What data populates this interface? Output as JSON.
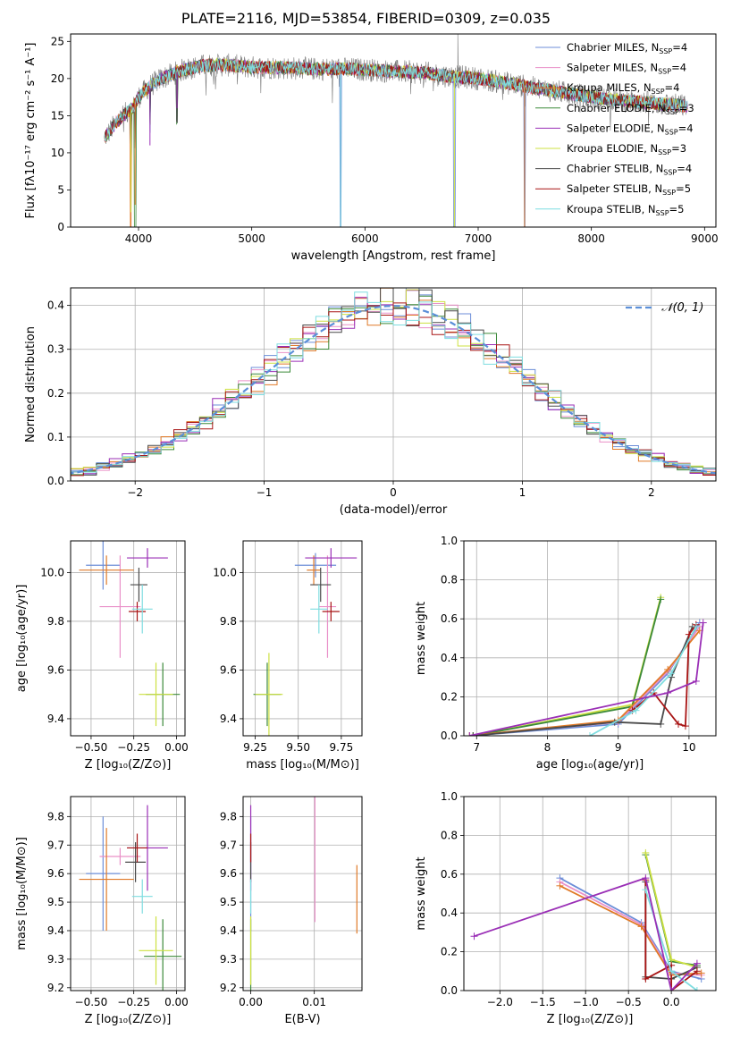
{
  "figure": {
    "title": "PLATE=2116, MJD=53854, FIBERID=0309, z=0.035"
  },
  "colors": {
    "Chabrier MILES": "#6c8ed8",
    "Salpeter MILES": "#e990c8",
    "Kroupa MILES": "#e07a28",
    "Chabrier ELODIE": "#3c8a3a",
    "Salpeter ELODIE": "#9a2fb6",
    "Kroupa ELODIE": "#cde040",
    "Chabrier STELIB": "#4a4a4a",
    "Salpeter STELIB": "#a81414",
    "Kroupa STELIB": "#7fdde0",
    "data": "#7a7a7a",
    "gauss": "#5b8fd8"
  },
  "chart_data": [
    {
      "id": "spectrum",
      "type": "line",
      "title": "PLATE=2116, MJD=53854, FIBERID=0309, z=0.035",
      "xlabel": "wavelength [Angstrom, rest frame]",
      "ylabel": "Flux [fλ10⁻¹⁷ erg cm⁻² s⁻¹ A⁻¹]",
      "xlim": [
        3400,
        9100
      ],
      "ylim": [
        0,
        26
      ],
      "xticks": [
        4000,
        5000,
        6000,
        7000,
        8000,
        9000
      ],
      "yticks": [
        0,
        5,
        10,
        15,
        20,
        25
      ],
      "legend": "top-right",
      "continuum": {
        "x": [
          3700,
          3800,
          3900,
          3950,
          4000,
          4100,
          4200,
          4400,
          4600,
          4800,
          5000,
          5200,
          5500,
          5800,
          6000,
          6200,
          6500,
          6700,
          7000,
          7300,
          7500,
          7800,
          8000,
          8300,
          8600,
          8850
        ],
        "y": [
          12,
          14,
          15.5,
          16,
          17.5,
          19,
          20,
          21.2,
          21.8,
          21.8,
          21.5,
          21.5,
          21.3,
          21.3,
          21.2,
          21,
          20.8,
          20.4,
          20,
          19.3,
          18.7,
          18,
          17.5,
          17,
          16.6,
          16.3
        ]
      },
      "dips": [
        {
          "x": 3933,
          "model": 2
        },
        {
          "x": 3970,
          "model": 3
        },
        {
          "x": 4101,
          "model": 12
        },
        {
          "x": 4340,
          "model": 16
        },
        {
          "x": 5785,
          "model": 0
        },
        {
          "x": 6790,
          "model": 0
        },
        {
          "x": 7410,
          "model": 0
        }
      ],
      "data_spike": {
        "x": 6820,
        "y": 26
      },
      "series": [
        {
          "name": "Chabrier MILES, N",
          "sub": "SSP",
          "tail": "=4"
        },
        {
          "name": "Salpeter MILES, N",
          "sub": "SSP",
          "tail": "=4"
        },
        {
          "name": "Kroupa MILES, N",
          "sub": "SSP",
          "tail": "=4"
        },
        {
          "name": "Chabrier ELODIE, N",
          "sub": "SSP",
          "tail": "=3"
        },
        {
          "name": "Salpeter ELODIE, N",
          "sub": "SSP",
          "tail": "=4"
        },
        {
          "name": "Kroupa ELODIE, N",
          "sub": "SSP",
          "tail": "=3"
        },
        {
          "name": "Chabrier STELIB, N",
          "sub": "SSP",
          "tail": "=4"
        },
        {
          "name": "Salpeter STELIB, N",
          "sub": "SSP",
          "tail": "=5"
        },
        {
          "name": "Kroupa STELIB, N",
          "sub": "SSP",
          "tail": "=5"
        }
      ]
    },
    {
      "id": "residuals",
      "type": "histogram",
      "xlabel": "(data-model)/error",
      "ylabel": "Normed distribution",
      "xlim": [
        -2.5,
        2.5
      ],
      "ylim": [
        0,
        0.44
      ],
      "xticks": [
        -2,
        -1,
        0,
        1,
        2
      ],
      "yticks": [
        0.0,
        0.1,
        0.2,
        0.3,
        0.4
      ],
      "legend": "top-right",
      "gauss_label": "𝒩(0, 1)",
      "bin_width": 0.1,
      "series": [
        "Chabrier MILES",
        "Salpeter MILES",
        "Kroupa MILES",
        "Chabrier ELODIE",
        "Salpeter ELODIE",
        "Kroupa ELODIE",
        "Chabrier STELIB",
        "Salpeter STELIB",
        "Kroupa STELIB"
      ]
    },
    {
      "id": "age_vs_Z",
      "type": "errorbar",
      "xlabel": "Z [log₁₀(Z/Z⊙)]",
      "ylabel": "age  [log₁₀(age/yr)]",
      "xlim": [
        -0.62,
        0.05
      ],
      "ylim": [
        9.33,
        10.13
      ],
      "xticks": [
        -0.5,
        -0.25,
        0.0
      ],
      "yticks": [
        9.4,
        9.6,
        9.8,
        10.0
      ],
      "points": [
        {
          "s": "Chabrier MILES",
          "x": -0.43,
          "xe": 0.1,
          "y": 10.03,
          "ye": 0.1
        },
        {
          "s": "Salpeter MILES",
          "x": -0.33,
          "xe": 0.12,
          "y": 9.86,
          "ye": 0.21
        },
        {
          "s": "Kroupa MILES",
          "x": -0.41,
          "xe": 0.16,
          "y": 10.01,
          "ye": 0.06
        },
        {
          "s": "Chabrier ELODIE",
          "x": -0.08,
          "xe": 0.1,
          "y": 9.5,
          "ye": 0.13
        },
        {
          "s": "Salpeter ELODIE",
          "x": -0.17,
          "xe": 0.12,
          "y": 10.06,
          "ye": 0.04
        },
        {
          "s": "Kroupa ELODIE",
          "x": -0.12,
          "xe": 0.1,
          "y": 9.5,
          "ye": 0.13
        },
        {
          "s": "Chabrier STELIB",
          "x": -0.22,
          "xe": 0.05,
          "y": 9.95,
          "ye": 0.07
        },
        {
          "s": "Salpeter STELIB",
          "x": -0.23,
          "xe": 0.05,
          "y": 9.84,
          "ye": 0.04
        },
        {
          "s": "Kroupa STELIB",
          "x": -0.2,
          "xe": 0.06,
          "y": 9.85,
          "ye": 0.1
        }
      ]
    },
    {
      "id": "age_vs_mass",
      "type": "errorbar",
      "xlabel": "mass [log₁₀(M/M⊙)]",
      "ylabel": "",
      "xlim": [
        9.18,
        9.87
      ],
      "ylim": [
        9.33,
        10.13
      ],
      "xticks": [
        9.25,
        9.5,
        9.75
      ],
      "yticks": [
        9.4,
        9.6,
        9.8,
        10.0
      ],
      "points": [
        {
          "s": "Chabrier MILES",
          "x": 9.6,
          "xe": 0.12,
          "y": 10.03,
          "ye": 0.05
        },
        {
          "s": "Salpeter MILES",
          "x": 9.67,
          "xe": 0.05,
          "y": 9.86,
          "ye": 0.21
        },
        {
          "s": "Kroupa MILES",
          "x": 9.59,
          "xe": 0.04,
          "y": 10.01,
          "ye": 0.06
        },
        {
          "s": "Chabrier ELODIE",
          "x": 9.32,
          "xe": 0.08,
          "y": 9.5,
          "ye": 0.13
        },
        {
          "s": "Salpeter ELODIE",
          "x": 9.69,
          "xe": 0.15,
          "y": 10.06,
          "ye": 0.04
        },
        {
          "s": "Kroupa ELODIE",
          "x": 9.33,
          "xe": 0.08,
          "y": 9.5,
          "ye": 0.17
        },
        {
          "s": "Chabrier STELIB",
          "x": 9.63,
          "xe": 0.06,
          "y": 9.95,
          "ye": 0.07
        },
        {
          "s": "Salpeter STELIB",
          "x": 9.69,
          "xe": 0.05,
          "y": 9.84,
          "ye": 0.04
        },
        {
          "s": "Kroupa STELIB",
          "x": 9.62,
          "xe": 0.05,
          "y": 9.85,
          "ye": 0.1
        }
      ]
    },
    {
      "id": "mw_vs_age",
      "type": "line",
      "xlabel": "age  [log₁₀(age/yr)]",
      "ylabel": "mass weight",
      "xlim": [
        6.82,
        10.38
      ],
      "ylim": [
        0,
        1
      ],
      "xticks": [
        7,
        8,
        9,
        10
      ],
      "yticks": [
        0.0,
        0.2,
        0.4,
        0.6,
        0.8,
        1.0
      ],
      "series": [
        {
          "s": "Kroupa ELODIE",
          "x": [
            6.95,
            9.2,
            9.6
          ],
          "y": [
            0.0,
            0.16,
            0.71
          ]
        },
        {
          "s": "Chabrier ELODIE",
          "x": [
            6.95,
            9.2,
            9.6
          ],
          "y": [
            0.0,
            0.15,
            0.7
          ]
        },
        {
          "s": "Chabrier MILES",
          "x": [
            6.9,
            9.0,
            9.7,
            10.15
          ],
          "y": [
            0.0,
            0.06,
            0.32,
            0.58
          ]
        },
        {
          "s": "Salpeter MILES",
          "x": [
            6.9,
            9.0,
            9.7,
            10.15
          ],
          "y": [
            0.0,
            0.07,
            0.33,
            0.56
          ]
        },
        {
          "s": "Kroupa MILES",
          "x": [
            6.9,
            9.0,
            9.7,
            10.15
          ],
          "y": [
            0.0,
            0.08,
            0.34,
            0.54
          ]
        },
        {
          "s": "Chabrier STELIB",
          "x": [
            6.95,
            8.95,
            9.6,
            9.75,
            10.05
          ],
          "y": [
            0.0,
            0.07,
            0.06,
            0.3,
            0.56
          ]
        },
        {
          "s": "Salpeter STELIB",
          "x": [
            9.2,
            9.5,
            9.85,
            9.95,
            10.0,
            10.1
          ],
          "y": [
            0.13,
            0.22,
            0.06,
            0.05,
            0.52,
            0.57
          ]
        },
        {
          "s": "Kroupa STELIB",
          "x": [
            8.6,
            9.25,
            9.75,
            10.1
          ],
          "y": [
            0.0,
            0.13,
            0.32,
            0.56
          ]
        },
        {
          "s": "Salpeter ELODIE",
          "x": [
            6.9,
            9.7,
            10.1,
            10.2
          ],
          "y": [
            0.0,
            0.22,
            0.28,
            0.58
          ]
        }
      ]
    },
    {
      "id": "mass_vs_Z",
      "type": "errorbar",
      "xlabel": "Z [log₁₀(Z/Z⊙)]",
      "ylabel": "mass [log₁₀(M/M⊙)]",
      "xlim": [
        -0.62,
        0.05
      ],
      "ylim": [
        9.19,
        9.87
      ],
      "xticks": [
        -0.5,
        -0.25,
        0.0
      ],
      "yticks": [
        9.2,
        9.3,
        9.4,
        9.5,
        9.6,
        9.7,
        9.8
      ],
      "points": [
        {
          "s": "Chabrier MILES",
          "x": -0.43,
          "xe": 0.1,
          "y": 9.6,
          "ye": 0.2
        },
        {
          "s": "Salpeter MILES",
          "x": -0.33,
          "xe": 0.12,
          "y": 9.66,
          "ye": 0.03
        },
        {
          "s": "Kroupa MILES",
          "x": -0.41,
          "xe": 0.16,
          "y": 9.58,
          "ye": 0.18
        },
        {
          "s": "Chabrier ELODIE",
          "x": -0.08,
          "xe": 0.11,
          "y": 9.31,
          "ye": 0.13
        },
        {
          "s": "Salpeter ELODIE",
          "x": -0.17,
          "xe": 0.12,
          "y": 9.69,
          "ye": 0.15
        },
        {
          "s": "Kroupa ELODIE",
          "x": -0.12,
          "xe": 0.1,
          "y": 9.33,
          "ye": 0.12
        },
        {
          "s": "Chabrier STELIB",
          "x": -0.24,
          "xe": 0.06,
          "y": 9.64,
          "ye": 0.07
        },
        {
          "s": "Salpeter STELIB",
          "x": -0.23,
          "xe": 0.06,
          "y": 9.69,
          "ye": 0.05
        },
        {
          "s": "Kroupa STELIB",
          "x": -0.2,
          "xe": 0.06,
          "y": 9.52,
          "ye": 0.06
        }
      ]
    },
    {
      "id": "mass_vs_ebv",
      "type": "errorbar",
      "xlabel": "E(B-V)",
      "ylabel": "",
      "xlim": [
        -0.0012,
        0.0175
      ],
      "ylim": [
        9.19,
        9.87
      ],
      "xticks": [
        0.0,
        0.01
      ],
      "yticks": [
        9.2,
        9.3,
        9.4,
        9.5,
        9.6,
        9.7,
        9.8
      ],
      "points": [
        {
          "s": "Chabrier MILES",
          "x": 0.0,
          "y": 9.6,
          "ye": 0.2
        },
        {
          "s": "Salpeter MILES",
          "x": 0.0101,
          "y": 9.66,
          "ye": 0.23
        },
        {
          "s": "Kroupa MILES",
          "x": 0.0167,
          "y": 9.51,
          "ye": 0.12
        },
        {
          "s": "Chabrier ELODIE",
          "x": 0.0,
          "y": 9.31,
          "ye": 0.13
        },
        {
          "s": "Salpeter ELODIE",
          "x": 0.0,
          "y": 9.69,
          "ye": 0.15
        },
        {
          "s": "Kroupa ELODIE",
          "x": 0.0,
          "y": 9.33,
          "ye": 0.12
        },
        {
          "s": "Chabrier STELIB",
          "x": 0.0,
          "y": 9.64,
          "ye": 0.07
        },
        {
          "s": "Salpeter STELIB",
          "x": 0.0,
          "y": 9.69,
          "ye": 0.05
        },
        {
          "s": "Kroupa STELIB",
          "x": 0.0,
          "y": 9.52,
          "ye": 0.06
        }
      ]
    },
    {
      "id": "mw_vs_Z",
      "type": "line",
      "xlabel": "Z [log₁₀(Z/Z⊙)]",
      "ylabel": "mass weight",
      "xlim": [
        -2.42,
        0.52
      ],
      "ylim": [
        0,
        1
      ],
      "xticks": [
        -2.0,
        -1.5,
        -1.0,
        -0.5,
        0.0
      ],
      "yticks": [
        0.0,
        0.2,
        0.4,
        0.6,
        0.8,
        1.0
      ],
      "series": [
        {
          "s": "Chabrier MILES",
          "x": [
            -1.3,
            -0.35,
            0.0,
            0.35
          ],
          "y": [
            0.58,
            0.35,
            0.1,
            0.06
          ]
        },
        {
          "s": "Salpeter MILES",
          "x": [
            -1.3,
            -0.35,
            0.0,
            0.35
          ],
          "y": [
            0.56,
            0.34,
            0.09,
            0.08
          ]
        },
        {
          "s": "Kroupa MILES",
          "x": [
            -1.3,
            -0.35,
            0.0,
            0.35
          ],
          "y": [
            0.54,
            0.33,
            0.08,
            0.09
          ]
        },
        {
          "s": "Chabrier ELODIE",
          "x": [
            -0.3,
            0.0,
            0.3
          ],
          "y": [
            0.7,
            0.15,
            0.13
          ]
        },
        {
          "s": "Kroupa ELODIE",
          "x": [
            -0.3,
            0.0,
            0.3
          ],
          "y": [
            0.71,
            0.16,
            0.12
          ]
        },
        {
          "s": "Chabrier STELIB",
          "x": [
            -0.3,
            -0.3,
            0.0,
            0.3
          ],
          "y": [
            0.56,
            0.07,
            0.06,
            0.12
          ]
        },
        {
          "s": "Salpeter STELIB",
          "x": [
            -0.3,
            -0.3,
            0.0,
            0.0,
            0.3
          ],
          "y": [
            0.57,
            0.06,
            0.13,
            0.0,
            0.1
          ]
        },
        {
          "s": "Kroupa STELIB",
          "x": [
            -0.3,
            0.0,
            0.3
          ],
          "y": [
            0.52,
            0.1,
            0.0
          ]
        },
        {
          "s": "Salpeter ELODIE",
          "x": [
            -2.3,
            -0.3,
            0.0,
            0.3
          ],
          "y": [
            0.28,
            0.58,
            0.0,
            0.14
          ]
        }
      ]
    }
  ]
}
